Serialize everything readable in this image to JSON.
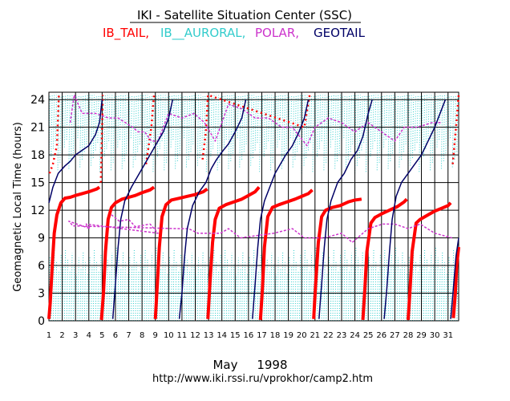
{
  "chart_data": {
    "type": "scatter",
    "title": "IKI - Satellite Situation Center (SSC)",
    "legend": [
      {
        "name": "IB_TAIL,",
        "color": "#ff0000"
      },
      {
        "name": "IB__AURORAL,",
        "color": "#33cccc"
      },
      {
        "name": "POLAR,",
        "color": "#cc33cc"
      },
      {
        "name": "GEOTAIL",
        "color": "#000066"
      }
    ],
    "ylabel": "Geomagnetic  Local  Time  (hours)",
    "xlabel": "May     1998",
    "footer": "http://www.iki.rssi.ru/vprokhor/camp2.htm",
    "xlim": [
      1,
      31.8
    ],
    "ylim": [
      0,
      24.8
    ],
    "x_ticks": [
      1,
      2,
      3,
      4,
      5,
      6,
      7,
      8,
      9,
      10,
      11,
      12,
      13,
      14,
      15,
      16,
      17,
      18,
      19,
      20,
      21,
      22,
      23,
      24,
      25,
      26,
      27,
      28,
      29,
      30,
      31
    ],
    "y_ticks": [
      0,
      3,
      6,
      9,
      12,
      15,
      18,
      21,
      24
    ],
    "grid": true,
    "series": [
      {
        "name": "IB_TAIL",
        "color": "#ff0000",
        "points": [
          [
            1.0,
            0.2
          ],
          [
            1.1,
            2.0
          ],
          [
            1.25,
            6.0
          ],
          [
            1.4,
            9.5
          ],
          [
            1.6,
            11.5
          ],
          [
            1.9,
            12.8
          ],
          [
            2.2,
            13.3
          ],
          [
            2.6,
            13.4
          ],
          [
            3.0,
            13.6
          ],
          [
            3.5,
            13.8
          ],
          [
            4.0,
            14.0
          ],
          [
            4.6,
            14.3
          ],
          [
            4.8,
            14.5
          ],
          [
            4.95,
            0.1
          ],
          [
            5.1,
            3.0
          ],
          [
            5.25,
            7.5
          ],
          [
            5.45,
            11.0
          ],
          [
            5.7,
            12.3
          ],
          [
            6.0,
            12.8
          ],
          [
            6.5,
            13.2
          ],
          [
            7.0,
            13.4
          ],
          [
            7.5,
            13.6
          ],
          [
            8.0,
            13.9
          ],
          [
            8.6,
            14.2
          ],
          [
            8.9,
            14.5
          ],
          [
            9.0,
            0.2
          ],
          [
            9.15,
            4.0
          ],
          [
            9.3,
            8.0
          ],
          [
            9.5,
            11.3
          ],
          [
            9.8,
            12.6
          ],
          [
            10.2,
            13.1
          ],
          [
            10.8,
            13.3
          ],
          [
            11.4,
            13.5
          ],
          [
            12.0,
            13.7
          ],
          [
            12.6,
            14.0
          ],
          [
            12.9,
            14.3
          ],
          [
            12.95,
            0.2
          ],
          [
            13.1,
            4.0
          ],
          [
            13.3,
            8.5
          ],
          [
            13.5,
            11.0
          ],
          [
            13.8,
            12.2
          ],
          [
            14.3,
            12.6
          ],
          [
            14.9,
            12.9
          ],
          [
            15.5,
            13.2
          ],
          [
            16.0,
            13.6
          ],
          [
            16.5,
            14.0
          ],
          [
            16.8,
            14.5
          ],
          [
            16.9,
            0.1
          ],
          [
            17.05,
            3.5
          ],
          [
            17.2,
            8.0
          ],
          [
            17.45,
            11.3
          ],
          [
            17.8,
            12.3
          ],
          [
            18.3,
            12.6
          ],
          [
            18.9,
            12.9
          ],
          [
            19.5,
            13.2
          ],
          [
            20.0,
            13.5
          ],
          [
            20.5,
            13.8
          ],
          [
            20.8,
            14.2
          ],
          [
            20.9,
            0.2
          ],
          [
            21.05,
            4.0
          ],
          [
            21.25,
            8.5
          ],
          [
            21.5,
            11.3
          ],
          [
            21.8,
            12.0
          ],
          [
            22.3,
            12.3
          ],
          [
            22.9,
            12.5
          ],
          [
            23.5,
            12.9
          ],
          [
            24.0,
            13.1
          ],
          [
            24.5,
            13.2
          ],
          [
            24.6,
            0.1
          ],
          [
            24.75,
            3.5
          ],
          [
            24.9,
            7.5
          ],
          [
            25.2,
            10.6
          ],
          [
            25.5,
            11.2
          ],
          [
            26.0,
            11.6
          ],
          [
            26.6,
            12.0
          ],
          [
            27.2,
            12.4
          ],
          [
            27.7,
            12.9
          ],
          [
            27.9,
            13.2
          ],
          [
            28.0,
            0.1
          ],
          [
            28.15,
            3.5
          ],
          [
            28.3,
            7.5
          ],
          [
            28.6,
            10.6
          ],
          [
            28.9,
            11.0
          ],
          [
            29.5,
            11.5
          ],
          [
            30.0,
            11.9
          ],
          [
            30.5,
            12.2
          ],
          [
            31.0,
            12.5
          ],
          [
            31.2,
            12.8
          ],
          [
            31.4,
            0.3
          ],
          [
            31.55,
            3.0
          ],
          [
            31.65,
            6.0
          ],
          [
            31.8,
            8.0
          ]
        ]
      },
      {
        "name": "IB_TAIL-flyby",
        "color": "#ff0000",
        "points": [
          [
            1.05,
            16.0
          ],
          [
            1.3,
            17.0
          ],
          [
            1.6,
            19.0
          ],
          [
            1.75,
            24.5
          ],
          [
            4.9,
            15.0
          ],
          [
            4.95,
            18.0
          ],
          [
            5.0,
            21.0
          ],
          [
            5.05,
            24.5
          ],
          [
            8.3,
            17.0
          ],
          [
            8.7,
            21.0
          ],
          [
            8.9,
            24.5
          ],
          [
            12.55,
            17.5
          ],
          [
            12.8,
            20.5
          ],
          [
            12.95,
            24.5
          ],
          [
            20.2,
            21.0
          ],
          [
            20.6,
            24.5
          ],
          [
            31.35,
            17.0
          ],
          [
            31.6,
            21.0
          ],
          [
            31.8,
            24.5
          ]
        ]
      },
      {
        "name": "POLAR",
        "color": "#cc33cc",
        "points": [
          [
            2.6,
            21.5
          ],
          [
            2.9,
            24.5
          ],
          [
            3.5,
            22.5
          ],
          [
            4.5,
            22.5
          ],
          [
            5.5,
            22.0
          ],
          [
            6.2,
            22.0
          ],
          [
            7.3,
            21.0
          ],
          [
            7.7,
            20.5
          ],
          [
            8.2,
            20.5
          ],
          [
            8.7,
            19.5
          ],
          [
            9.2,
            19.5
          ],
          [
            10.0,
            22.5
          ],
          [
            11.0,
            22.0
          ],
          [
            11.9,
            22.5
          ],
          [
            12.7,
            21.5
          ],
          [
            13.5,
            19.5
          ],
          [
            14.5,
            23.5
          ],
          [
            15.5,
            23.0
          ],
          [
            16.5,
            22.0
          ],
          [
            17.5,
            22.0
          ],
          [
            18.5,
            21.0
          ],
          [
            19.3,
            21.0
          ],
          [
            20.4,
            19.0
          ],
          [
            21.0,
            21.0
          ],
          [
            22.0,
            22.0
          ],
          [
            23.0,
            21.5
          ],
          [
            24.0,
            20.5
          ],
          [
            25.0,
            21.5
          ],
          [
            26.0,
            20.5
          ],
          [
            27.0,
            19.5
          ],
          [
            27.7,
            21.0
          ],
          [
            28.7,
            21.0
          ],
          [
            29.8,
            21.5
          ],
          [
            30.5,
            21.5
          ],
          [
            5.7,
            11.5
          ],
          [
            6.3,
            10.8
          ],
          [
            7.0,
            11.0
          ],
          [
            7.5,
            10.2
          ],
          [
            8.6,
            10.5
          ],
          [
            9.2,
            9.5
          ],
          [
            3.8,
            10.5
          ],
          [
            4.1,
            10.0
          ],
          [
            2.5,
            10.8
          ],
          [
            2.8,
            10.3
          ],
          [
            10.6,
            10.0
          ],
          [
            11.5,
            10.0
          ],
          [
            12.2,
            9.5
          ],
          [
            13.9,
            9.5
          ],
          [
            14.5,
            10.0
          ],
          [
            15.4,
            9.0
          ],
          [
            17.9,
            9.5
          ],
          [
            19.3,
            10.0
          ],
          [
            20.2,
            9.0
          ],
          [
            21.7,
            9.0
          ],
          [
            23.0,
            9.5
          ],
          [
            23.8,
            8.5
          ],
          [
            25.0,
            10.0
          ],
          [
            26.1,
            10.5
          ],
          [
            27.0,
            10.5
          ],
          [
            28.0,
            10.0
          ],
          [
            28.9,
            10.5
          ],
          [
            30.0,
            9.5
          ],
          [
            31.3,
            9.0
          ]
        ]
      },
      {
        "name": "GEOTAIL",
        "color": "#000066",
        "points": [
          [
            1.0,
            12.8
          ],
          [
            1.3,
            14.5
          ],
          [
            1.7,
            16.0
          ],
          [
            2.2,
            16.8
          ],
          [
            2.6,
            17.3
          ],
          [
            3.0,
            18.0
          ],
          [
            3.5,
            18.5
          ],
          [
            4.0,
            19.0
          ],
          [
            4.5,
            20.2
          ],
          [
            4.8,
            21.5
          ],
          [
            5.0,
            24.0
          ],
          [
            5.8,
            0.2
          ],
          [
            6.0,
            4.0
          ],
          [
            6.2,
            8.0
          ],
          [
            6.4,
            11.0
          ],
          [
            6.7,
            13.0
          ],
          [
            7.2,
            14.5
          ],
          [
            7.6,
            15.5
          ],
          [
            8.0,
            16.5
          ],
          [
            8.4,
            17.5
          ],
          [
            8.8,
            18.5
          ],
          [
            9.2,
            19.5
          ],
          [
            9.6,
            20.5
          ],
          [
            10.0,
            22.0
          ],
          [
            10.3,
            24.0
          ],
          [
            10.8,
            0.2
          ],
          [
            11.0,
            3.0
          ],
          [
            11.2,
            7.0
          ],
          [
            11.4,
            10.0
          ],
          [
            11.8,
            12.5
          ],
          [
            12.3,
            14.0
          ],
          [
            12.8,
            15.0
          ],
          [
            13.2,
            16.5
          ],
          [
            13.6,
            17.5
          ],
          [
            14.0,
            18.3
          ],
          [
            14.5,
            19.2
          ],
          [
            15.0,
            20.5
          ],
          [
            15.5,
            22.0
          ],
          [
            15.8,
            24.0
          ],
          [
            16.3,
            0.2
          ],
          [
            16.5,
            4.0
          ],
          [
            16.7,
            8.0
          ],
          [
            16.9,
            11.0
          ],
          [
            17.2,
            13.0
          ],
          [
            17.6,
            14.5
          ],
          [
            18.0,
            16.0
          ],
          [
            18.4,
            17.0
          ],
          [
            18.8,
            18.0
          ],
          [
            19.3,
            19.0
          ],
          [
            19.8,
            20.5
          ],
          [
            20.2,
            22.0
          ],
          [
            20.5,
            24.0
          ],
          [
            21.3,
            0.2
          ],
          [
            21.5,
            4.0
          ],
          [
            21.7,
            8.0
          ],
          [
            21.9,
            11.0
          ],
          [
            22.2,
            13.0
          ],
          [
            22.7,
            15.0
          ],
          [
            23.2,
            16.0
          ],
          [
            23.7,
            17.5
          ],
          [
            24.2,
            18.5
          ],
          [
            24.6,
            20.0
          ],
          [
            25.0,
            22.5
          ],
          [
            25.3,
            24.0
          ],
          [
            26.2,
            0.2
          ],
          [
            26.4,
            3.5
          ],
          [
            26.6,
            7.5
          ],
          [
            26.8,
            11.0
          ],
          [
            27.1,
            13.5
          ],
          [
            27.5,
            15.0
          ],
          [
            28.0,
            16.0
          ],
          [
            28.5,
            17.0
          ],
          [
            29.0,
            18.0
          ],
          [
            29.5,
            19.5
          ],
          [
            30.0,
            21.0
          ],
          [
            30.4,
            22.5
          ],
          [
            30.8,
            24.0
          ],
          [
            31.2,
            0.2
          ],
          [
            31.4,
            3.5
          ],
          [
            31.6,
            7.0
          ],
          [
            31.8,
            9.0
          ]
        ]
      }
    ],
    "auroral_cloud": {
      "name": "IB__AURORAL",
      "color": "#33cccc",
      "band_low": [
        0,
        8
      ],
      "band_high": [
        16,
        24.5
      ],
      "spikes_per_day": 6
    }
  }
}
